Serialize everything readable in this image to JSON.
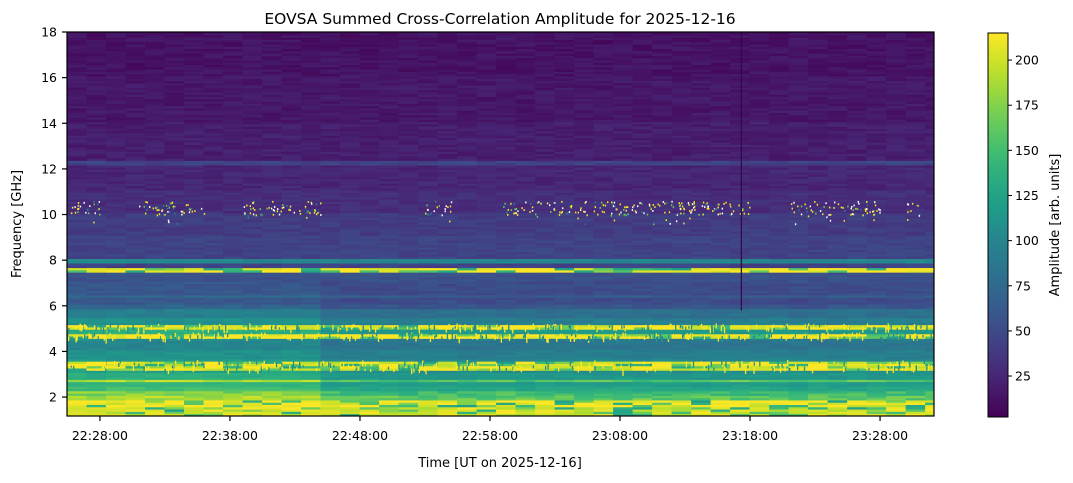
{
  "chart_data": {
    "type": "heatmap",
    "title": "EOVSA Summed Cross-Correlation Amplitude for 2025-12-16",
    "xlabel": "Time [UT on 2025-12-16]",
    "ylabel": "Frequency [GHz]",
    "x_range": [
      "22:25:28",
      "23:32:09"
    ],
    "x_ticks": [
      "22:28:00",
      "22:38:00",
      "22:48:00",
      "22:58:00",
      "23:08:00",
      "23:18:00",
      "23:28:00"
    ],
    "y_range": [
      1.17,
      18
    ],
    "y_ticks": [
      2,
      4,
      6,
      8,
      10,
      12,
      14,
      16,
      18
    ],
    "colormap": "viridis",
    "colorbar": {
      "label": "Amplitude [arb. units]",
      "range": [
        2.3,
        215
      ],
      "ticks": [
        25,
        50,
        75,
        100,
        125,
        150,
        175,
        200
      ]
    },
    "frequency_profile_ghz_amplitude": [
      [
        1.17,
        200
      ],
      [
        1.5,
        210
      ],
      [
        1.8,
        190
      ],
      [
        2.0,
        175
      ],
      [
        2.2,
        150
      ],
      [
        2.4,
        140
      ],
      [
        2.6,
        185
      ],
      [
        2.7,
        135
      ],
      [
        3.0,
        125
      ],
      [
        3.1,
        205
      ],
      [
        3.5,
        120
      ],
      [
        3.6,
        110
      ],
      [
        4.0,
        100
      ],
      [
        4.4,
        105
      ],
      [
        4.5,
        215
      ],
      [
        4.7,
        135
      ],
      [
        4.9,
        210
      ],
      [
        5.1,
        110
      ],
      [
        5.4,
        95
      ],
      [
        5.8,
        70
      ],
      [
        6.0,
        60
      ],
      [
        6.3,
        75
      ],
      [
        6.4,
        60
      ],
      [
        7.0,
        55
      ],
      [
        7.4,
        215
      ],
      [
        7.6,
        45
      ],
      [
        7.8,
        100
      ],
      [
        8.0,
        45
      ],
      [
        9.0,
        40
      ],
      [
        10.0,
        30
      ],
      [
        11.0,
        25
      ],
      [
        12.1,
        45
      ],
      [
        12.3,
        20
      ],
      [
        14.0,
        16
      ],
      [
        16.0,
        13
      ]
    ],
    "level_drop": {
      "time": "22:45:30",
      "below_ghz": 7,
      "factor": 0.85
    },
    "burst_band_ghz": [
      9.8,
      10.7
    ],
    "burst_clusters": [
      [
        "22:25:30",
        "22:28:00"
      ],
      [
        "22:31:00",
        "22:36:00"
      ],
      [
        "22:39:00",
        "22:45:00"
      ],
      [
        "22:53:00",
        "22:55:00"
      ],
      [
        "22:59:00",
        "23:18:00"
      ],
      [
        "23:21:00",
        "23:28:00"
      ],
      [
        "23:30:00",
        "23:31:00"
      ]
    ],
    "dropout_line": {
      "time": "23:17:20",
      "from_ghz": 5.8,
      "to_ghz": 18
    }
  }
}
